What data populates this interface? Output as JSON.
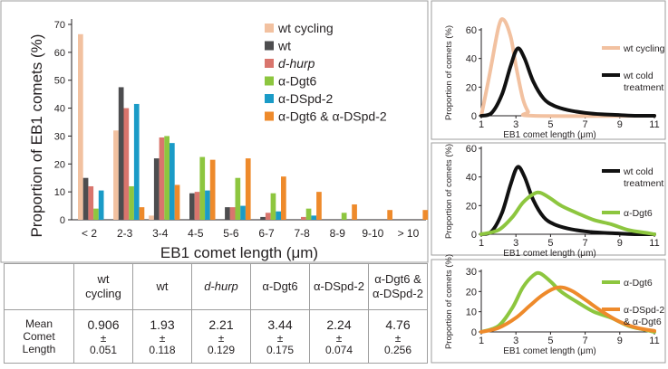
{
  "main_chart": {
    "ylabel": "Proportion of EB1 comets (%)",
    "xlabel": "EB1 comet length (μm)",
    "yticks": [
      "0",
      "10",
      "20",
      "30",
      "40",
      "50",
      "60",
      "70"
    ]
  },
  "stats_table": {
    "row_label": [
      "Mean",
      "Comet",
      "Length"
    ],
    "pm": "±",
    "columns": [
      {
        "name_lines": [
          "wt",
          "cycling"
        ],
        "italic": false,
        "mean": "0.906",
        "sem": "0.051"
      },
      {
        "name_lines": [
          "wt"
        ],
        "italic": false,
        "mean": "1.93",
        "sem": "0.118"
      },
      {
        "name_lines": [
          "d-hurp"
        ],
        "italic": true,
        "mean": "2.21",
        "sem": "0.129"
      },
      {
        "name_lines": [
          "α-Dgt6"
        ],
        "italic": false,
        "mean": "3.44",
        "sem": "0.175"
      },
      {
        "name_lines": [
          "α-DSpd-2"
        ],
        "italic": false,
        "mean": "2.24",
        "sem": "0.074"
      },
      {
        "name_lines": [
          "α-Dgt6 &",
          "α-DSpd-2"
        ],
        "italic": false,
        "mean": "4.76",
        "sem": "0.256"
      }
    ]
  },
  "chart_data": [
    {
      "type": "bar",
      "title": "",
      "xlabel": "EB1 comet length (μm)",
      "ylabel": "Proportion of EB1 comets (%)",
      "ylim": [
        0,
        70
      ],
      "grid": false,
      "legend_position": "top-right",
      "categories": [
        "< 2",
        "2-3",
        "3-4",
        "4-5",
        "5-6",
        "6-7",
        "7-8",
        "8-9",
        "9-10",
        "> 10"
      ],
      "series": [
        {
          "name": "wt cycling",
          "color": "#f2c1a0",
          "values": [
            66.5,
            32,
            1.5,
            0,
            0,
            0,
            0,
            0,
            0,
            0
          ]
        },
        {
          "name": "wt",
          "color": "#4d4d4f",
          "values": [
            15,
            47.5,
            22,
            9.5,
            4.5,
            1,
            0,
            0,
            0,
            0
          ]
        },
        {
          "name": "d-hurp",
          "italic": true,
          "color": "#d9756d",
          "values": [
            12,
            40,
            29.5,
            10,
            4.5,
            2.5,
            1,
            0,
            0,
            0
          ]
        },
        {
          "name": "α-Dgt6",
          "color": "#8dc63f",
          "values": [
            4,
            12,
            30,
            22.5,
            15,
            9.5,
            4,
            2.5,
            0,
            0
          ]
        },
        {
          "name": "α-DSpd-2",
          "color": "#1a9bc7",
          "values": [
            10.5,
            41.5,
            27.5,
            10.5,
            5,
            3,
            1.5,
            0,
            0,
            0
          ]
        },
        {
          "name": "α-Dgt6 & α-DSpd-2",
          "color": "#ee8a2b",
          "values": [
            0,
            4.5,
            12.5,
            21.5,
            22,
            15.5,
            10,
            5.5,
            3.5,
            3.5
          ]
        }
      ]
    },
    {
      "type": "line",
      "ylabel": "Proportion of comets (%)",
      "xlabel": "EB1 comet length (μm)",
      "xlim": [
        1,
        11
      ],
      "ylim": [
        0,
        60
      ],
      "xticks": [
        1,
        3,
        5,
        7,
        9,
        11
      ],
      "yticks": [
        0,
        20,
        40,
        60
      ],
      "legend_position": "right",
      "series": [
        {
          "name": "wt cycling",
          "color": "#f2c1a0",
          "x": [
            1,
            1.5,
            2,
            2.3,
            2.7,
            3.0,
            3.4,
            3.7,
            4.0,
            11
          ],
          "y": [
            0,
            30,
            62,
            67,
            55,
            35,
            12,
            3,
            0,
            0
          ]
        },
        {
          "name_lines": [
            "wt cold",
            "treatment"
          ],
          "color": "#111111",
          "x": [
            1,
            1.6,
            2.2,
            2.7,
            3.1,
            3.5,
            4.0,
            4.6,
            5.2,
            6,
            7,
            8,
            9,
            10,
            11
          ],
          "y": [
            0,
            2,
            15,
            35,
            47,
            40,
            24,
            12,
            7,
            4,
            2,
            1,
            0.5,
            0,
            0
          ]
        }
      ]
    },
    {
      "type": "line",
      "ylabel": "Proportion of comets (%)",
      "xlabel": "EB1 comet length (μm)",
      "xlim": [
        1,
        11
      ],
      "ylim": [
        0,
        60
      ],
      "xticks": [
        1,
        3,
        5,
        7,
        9,
        11
      ],
      "yticks": [
        0,
        20,
        40,
        60
      ],
      "legend_position": "right",
      "series": [
        {
          "name_lines": [
            "wt cold",
            "treatment"
          ],
          "color": "#111111",
          "x": [
            1,
            1.6,
            2.2,
            2.7,
            3.1,
            3.5,
            4.0,
            4.6,
            5.2,
            6,
            7,
            8,
            9,
            10,
            11
          ],
          "y": [
            0,
            2,
            15,
            35,
            47,
            40,
            24,
            12,
            7,
            4,
            2,
            1,
            0.5,
            0,
            0
          ]
        },
        {
          "name": "α-Dgt6",
          "color": "#8dc63f",
          "x": [
            1,
            2,
            2.8,
            3.4,
            4.0,
            4.4,
            5.0,
            5.6,
            6.5,
            7.5,
            8.5,
            9.5,
            10.5,
            11
          ],
          "y": [
            0,
            3,
            12,
            22,
            28,
            29,
            25,
            20,
            15,
            10,
            7,
            3,
            1,
            0
          ]
        }
      ]
    },
    {
      "type": "line",
      "ylabel": "Proportion of comets (%)",
      "xlabel": "EB1 comet length (μm)",
      "xlim": [
        1,
        11
      ],
      "ylim": [
        0,
        30
      ],
      "xticks": [
        1,
        3,
        5,
        7,
        9,
        11
      ],
      "yticks": [
        0,
        10,
        20,
        30
      ],
      "legend_position": "right",
      "series": [
        {
          "name": "α-Dgt6",
          "color": "#8dc63f",
          "x": [
            1,
            2,
            2.8,
            3.4,
            4.0,
            4.4,
            5.0,
            5.6,
            6.5,
            7.5,
            8.5,
            9.5,
            10.5,
            11
          ],
          "y": [
            0,
            3,
            12,
            22,
            28,
            29,
            25,
            20,
            15,
            10,
            7,
            3,
            1,
            0
          ]
        },
        {
          "name_lines": [
            "α-DSpd-2",
            "& α-Dgt6"
          ],
          "color": "#ee8a2b",
          "x": [
            1,
            2,
            3,
            3.8,
            4.5,
            5.2,
            5.7,
            6.3,
            7,
            8,
            9,
            10,
            11
          ],
          "y": [
            0,
            2,
            7,
            13,
            18,
            21.5,
            22,
            20,
            16,
            10,
            5,
            2,
            0.5
          ]
        }
      ]
    }
  ]
}
